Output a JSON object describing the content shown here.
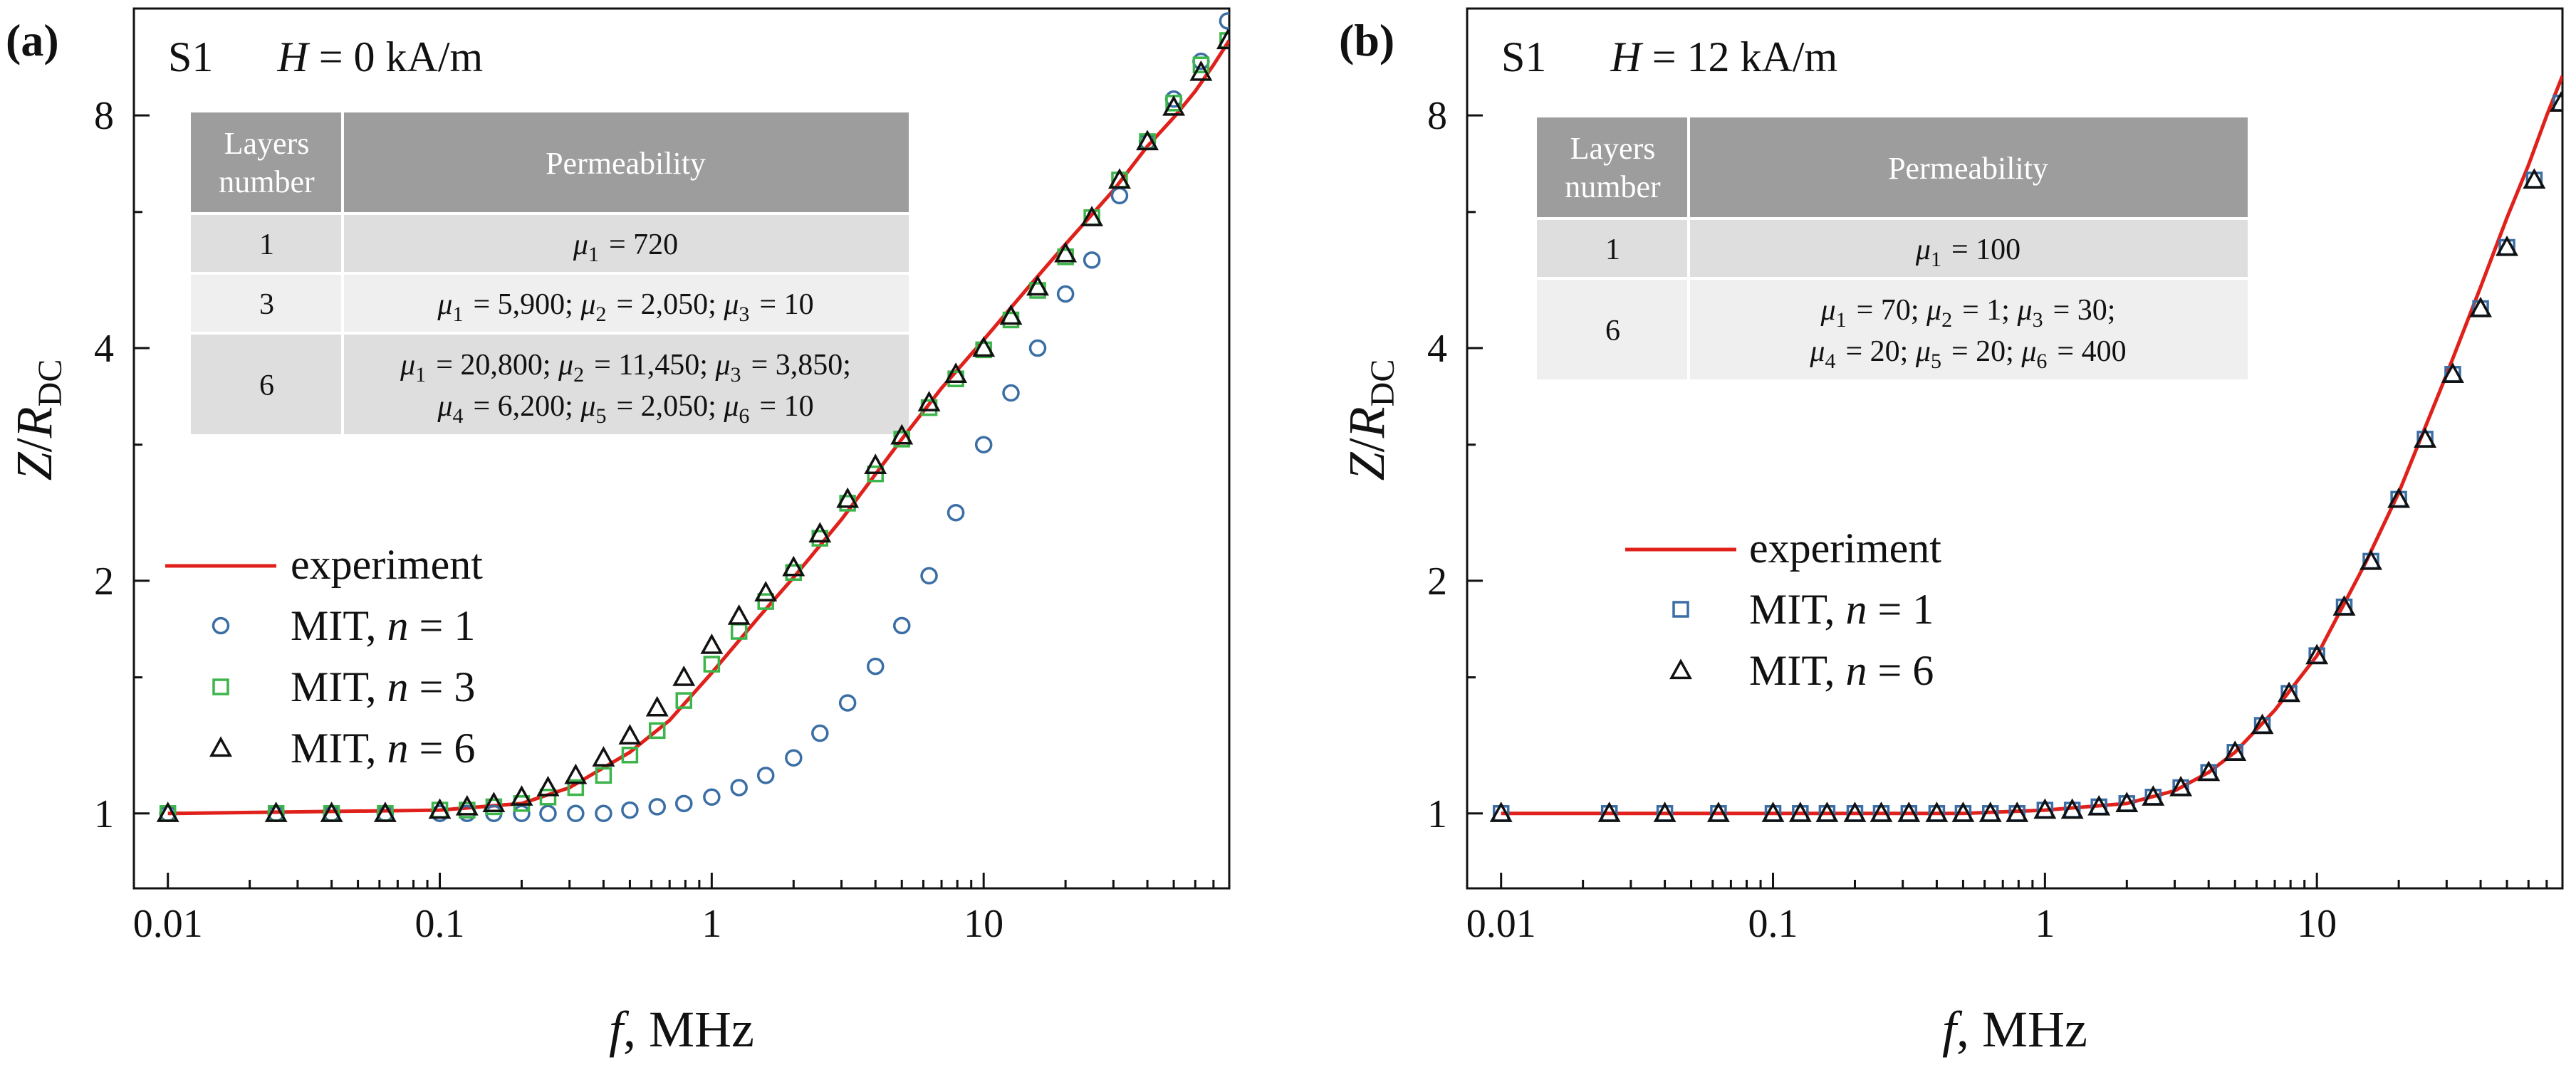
{
  "chart_data": [
    {
      "panel": "(a)",
      "type": "scatter",
      "sample": "S1",
      "field_label": "H = 0 kA/m",
      "field_symbol": "H",
      "field_value": " = 0 kA/m",
      "xlabel": "f, MHz",
      "ylabel": "Z/RDC",
      "xscale": "log",
      "yscale": "log",
      "xlim": [
        0.0075,
        80
      ],
      "ylim": [
        0.8,
        11
      ],
      "xticks": [
        {
          "v": 0.01,
          "label": "0.01"
        },
        {
          "v": 0.1,
          "label": "0.1"
        },
        {
          "v": 1,
          "label": "1"
        },
        {
          "v": 10,
          "label": "10"
        }
      ],
      "yticks": [
        {
          "v": 1,
          "label": "1"
        },
        {
          "v": 2,
          "label": "2"
        },
        {
          "v": 4,
          "label": "4"
        },
        {
          "v": 8,
          "label": "8"
        }
      ],
      "legend": {
        "position": "center-left",
        "entries": [
          {
            "text": "experiment",
            "label": "experiment",
            "marker": "line",
            "color": "#e0201b"
          },
          {
            "text": "MIT, n = 1",
            "pre": "MIT, ",
            "var": "n",
            "post": " = 1",
            "marker": "circle",
            "color": "#3a6ea5"
          },
          {
            "text": "MIT, n = 3",
            "pre": "MIT, ",
            "var": "n",
            "post": " = 3",
            "marker": "square",
            "color": "#3cb54a"
          },
          {
            "text": "MIT, n = 6",
            "pre": "MIT, ",
            "var": "n",
            "post": " = 6",
            "marker": "triangle",
            "color": "#111111"
          }
        ]
      },
      "table": {
        "position": "top-left",
        "headers": [
          [
            "Layers",
            "number"
          ],
          [
            "Permeability"
          ]
        ],
        "rows": [
          {
            "layers": "1",
            "lines": [
              "μ1 = 720"
            ]
          },
          {
            "layers": "3",
            "lines": [
              "μ1 = 5,900; μ2 = 2,050; μ3 = 10"
            ]
          },
          {
            "layers": "6",
            "lines": [
              "μ1 = 20,800; μ2 = 11,450; μ3 = 3,850;",
              "μ4 = 6,200; μ5 = 2,050; μ6 = 10"
            ]
          }
        ]
      },
      "series": [
        {
          "name": "experiment",
          "style": "line",
          "color": "#e0201b",
          "x": [
            0.01,
            0.1,
            0.2,
            0.3,
            0.5,
            0.7,
            1,
            1.5,
            2,
            3,
            5,
            7,
            10,
            15,
            20,
            30,
            40,
            50,
            60,
            70,
            80
          ],
          "y": [
            1.0,
            1.01,
            1.03,
            1.08,
            1.2,
            1.32,
            1.52,
            1.8,
            2.02,
            2.4,
            3.05,
            3.55,
            4.1,
            4.85,
            5.45,
            6.4,
            7.3,
            7.95,
            8.6,
            9.3,
            10.0
          ]
        },
        {
          "name": "MIT, n = 1",
          "style": "circle",
          "color": "#3a6ea5",
          "x": [
            0.01,
            0.025,
            0.04,
            0.063,
            0.1,
            0.126,
            0.158,
            0.2,
            0.25,
            0.316,
            0.4,
            0.5,
            0.63,
            0.79,
            1.0,
            1.26,
            1.58,
            2.0,
            2.5,
            3.16,
            4.0,
            5.0,
            6.3,
            7.9,
            10,
            12.6,
            15.8,
            20,
            25,
            31.6,
            40,
            50,
            63,
            79
          ],
          "y": [
            1.0,
            1.0,
            1.0,
            1.0,
            1.0,
            1.0,
            1.0,
            1.0,
            1.0,
            1.0,
            1.0,
            1.01,
            1.02,
            1.03,
            1.05,
            1.08,
            1.12,
            1.18,
            1.27,
            1.39,
            1.55,
            1.75,
            2.03,
            2.45,
            3.0,
            3.5,
            4.0,
            4.7,
            5.2,
            6.3,
            7.4,
            8.4,
            9.4,
            10.6
          ]
        },
        {
          "name": "MIT, n = 3",
          "style": "square",
          "color": "#3cb54a",
          "x": [
            0.01,
            0.025,
            0.04,
            0.063,
            0.1,
            0.126,
            0.158,
            0.2,
            0.25,
            0.316,
            0.4,
            0.5,
            0.63,
            0.79,
            1.0,
            1.26,
            1.58,
            2.0,
            2.5,
            3.16,
            4.0,
            5.0,
            6.3,
            7.9,
            10,
            12.6,
            15.8,
            20,
            25,
            31.6,
            40,
            50,
            63,
            79
          ],
          "y": [
            1.0,
            1.0,
            1.0,
            1.0,
            1.01,
            1.01,
            1.02,
            1.03,
            1.05,
            1.08,
            1.12,
            1.19,
            1.28,
            1.4,
            1.56,
            1.72,
            1.88,
            2.05,
            2.27,
            2.52,
            2.75,
            3.05,
            3.35,
            3.65,
            3.98,
            4.35,
            4.75,
            5.25,
            5.9,
            6.6,
            7.4,
            8.3,
            9.3,
            10.0
          ]
        },
        {
          "name": "MIT, n = 6",
          "style": "triangle",
          "color": "#111111",
          "x": [
            0.01,
            0.025,
            0.04,
            0.063,
            0.1,
            0.126,
            0.158,
            0.2,
            0.25,
            0.316,
            0.4,
            0.5,
            0.63,
            0.79,
            1.0,
            1.26,
            1.58,
            2.0,
            2.5,
            3.16,
            4.0,
            5.0,
            6.3,
            7.9,
            10,
            12.6,
            15.8,
            20,
            25,
            31.6,
            40,
            50,
            63,
            79
          ],
          "y": [
            1.0,
            1.0,
            1.0,
            1.0,
            1.01,
            1.02,
            1.03,
            1.05,
            1.08,
            1.12,
            1.18,
            1.26,
            1.37,
            1.5,
            1.65,
            1.8,
            1.93,
            2.08,
            2.3,
            2.55,
            2.82,
            3.08,
            3.4,
            3.7,
            4.0,
            4.4,
            4.8,
            5.3,
            5.9,
            6.6,
            7.4,
            8.2,
            9.1,
            10.0
          ]
        }
      ]
    },
    {
      "panel": "(b)",
      "type": "scatter",
      "sample": "S1",
      "field_label": "H = 12 kA/m",
      "field_symbol": "H",
      "field_value": " = 12 kA/m",
      "xlabel": "f, MHz",
      "ylabel": "Z/RDC",
      "xscale": "log",
      "yscale": "log",
      "xlim": [
        0.0075,
        80
      ],
      "ylim": [
        0.8,
        11
      ],
      "xticks": [
        {
          "v": 0.01,
          "label": "0.01"
        },
        {
          "v": 0.1,
          "label": "0.1"
        },
        {
          "v": 1,
          "label": "1"
        },
        {
          "v": 10,
          "label": "10"
        }
      ],
      "yticks": [
        {
          "v": 1,
          "label": "1"
        },
        {
          "v": 2,
          "label": "2"
        },
        {
          "v": 4,
          "label": "4"
        },
        {
          "v": 8,
          "label": "8"
        }
      ],
      "legend": {
        "position": "center-left",
        "entries": [
          {
            "text": "experiment",
            "label": "experiment",
            "marker": "line",
            "color": "#e0201b"
          },
          {
            "text": "MIT, n = 1",
            "pre": "MIT, ",
            "var": "n",
            "post": " = 1",
            "marker": "square",
            "color": "#3a6ea5"
          },
          {
            "text": "MIT, n = 6",
            "pre": "MIT, ",
            "var": "n",
            "post": " = 6",
            "marker": "triangle",
            "color": "#111111"
          }
        ]
      },
      "table": {
        "position": "top-left",
        "headers": [
          [
            "Layers",
            "number"
          ],
          [
            "Permeability"
          ]
        ],
        "rows": [
          {
            "layers": "1",
            "lines": [
              "μ1 = 100"
            ]
          },
          {
            "layers": "6",
            "lines": [
              "μ1 = 70; μ2 = 1; μ3 = 30;",
              "μ4 = 20; μ5 = 20; μ6 = 400"
            ]
          }
        ]
      },
      "series": [
        {
          "name": "experiment",
          "style": "line",
          "color": "#e0201b",
          "x": [
            0.01,
            0.1,
            0.5,
            1,
            2,
            3,
            4,
            5,
            7,
            10,
            15,
            20,
            30,
            40,
            50,
            60,
            70,
            80
          ],
          "y": [
            1.0,
            1.0,
            1.0,
            1.01,
            1.03,
            1.07,
            1.13,
            1.2,
            1.36,
            1.6,
            2.1,
            2.6,
            3.7,
            4.8,
            5.9,
            6.9,
            8.0,
            9.0
          ]
        },
        {
          "name": "MIT, n = 1",
          "style": "square",
          "color": "#3a6ea5",
          "x": [
            0.01,
            0.025,
            0.04,
            0.063,
            0.1,
            0.126,
            0.158,
            0.2,
            0.25,
            0.316,
            0.4,
            0.5,
            0.63,
            0.79,
            1.0,
            1.26,
            1.58,
            2.0,
            2.5,
            3.16,
            4.0,
            5.0,
            6.3,
            7.9,
            10,
            12.6,
            15.8,
            20,
            25,
            31.6,
            40,
            50,
            63,
            79
          ],
          "y": [
            1.0,
            1.0,
            1.0,
            1.0,
            1.0,
            1.0,
            1.0,
            1.0,
            1.0,
            1.0,
            1.0,
            1.0,
            1.0,
            1.0,
            1.01,
            1.01,
            1.02,
            1.03,
            1.05,
            1.08,
            1.13,
            1.2,
            1.3,
            1.43,
            1.6,
            1.85,
            2.12,
            2.55,
            3.05,
            3.7,
            4.5,
            5.4,
            6.6,
            8.3
          ]
        },
        {
          "name": "MIT, n = 6",
          "style": "triangle",
          "color": "#111111",
          "x": [
            0.01,
            0.025,
            0.04,
            0.063,
            0.1,
            0.126,
            0.158,
            0.2,
            0.25,
            0.316,
            0.4,
            0.5,
            0.63,
            0.79,
            1.0,
            1.26,
            1.58,
            2.0,
            2.5,
            3.16,
            4.0,
            5.0,
            6.3,
            7.9,
            10,
            12.6,
            15.8,
            20,
            25,
            31.6,
            40,
            50,
            63,
            79
          ],
          "y": [
            1.0,
            1.0,
            1.0,
            1.0,
            1.0,
            1.0,
            1.0,
            1.0,
            1.0,
            1.0,
            1.0,
            1.0,
            1.0,
            1.0,
            1.01,
            1.01,
            1.02,
            1.03,
            1.05,
            1.08,
            1.13,
            1.2,
            1.3,
            1.43,
            1.6,
            1.85,
            2.12,
            2.55,
            3.05,
            3.7,
            4.5,
            5.4,
            6.6,
            8.3
          ]
        }
      ]
    }
  ]
}
